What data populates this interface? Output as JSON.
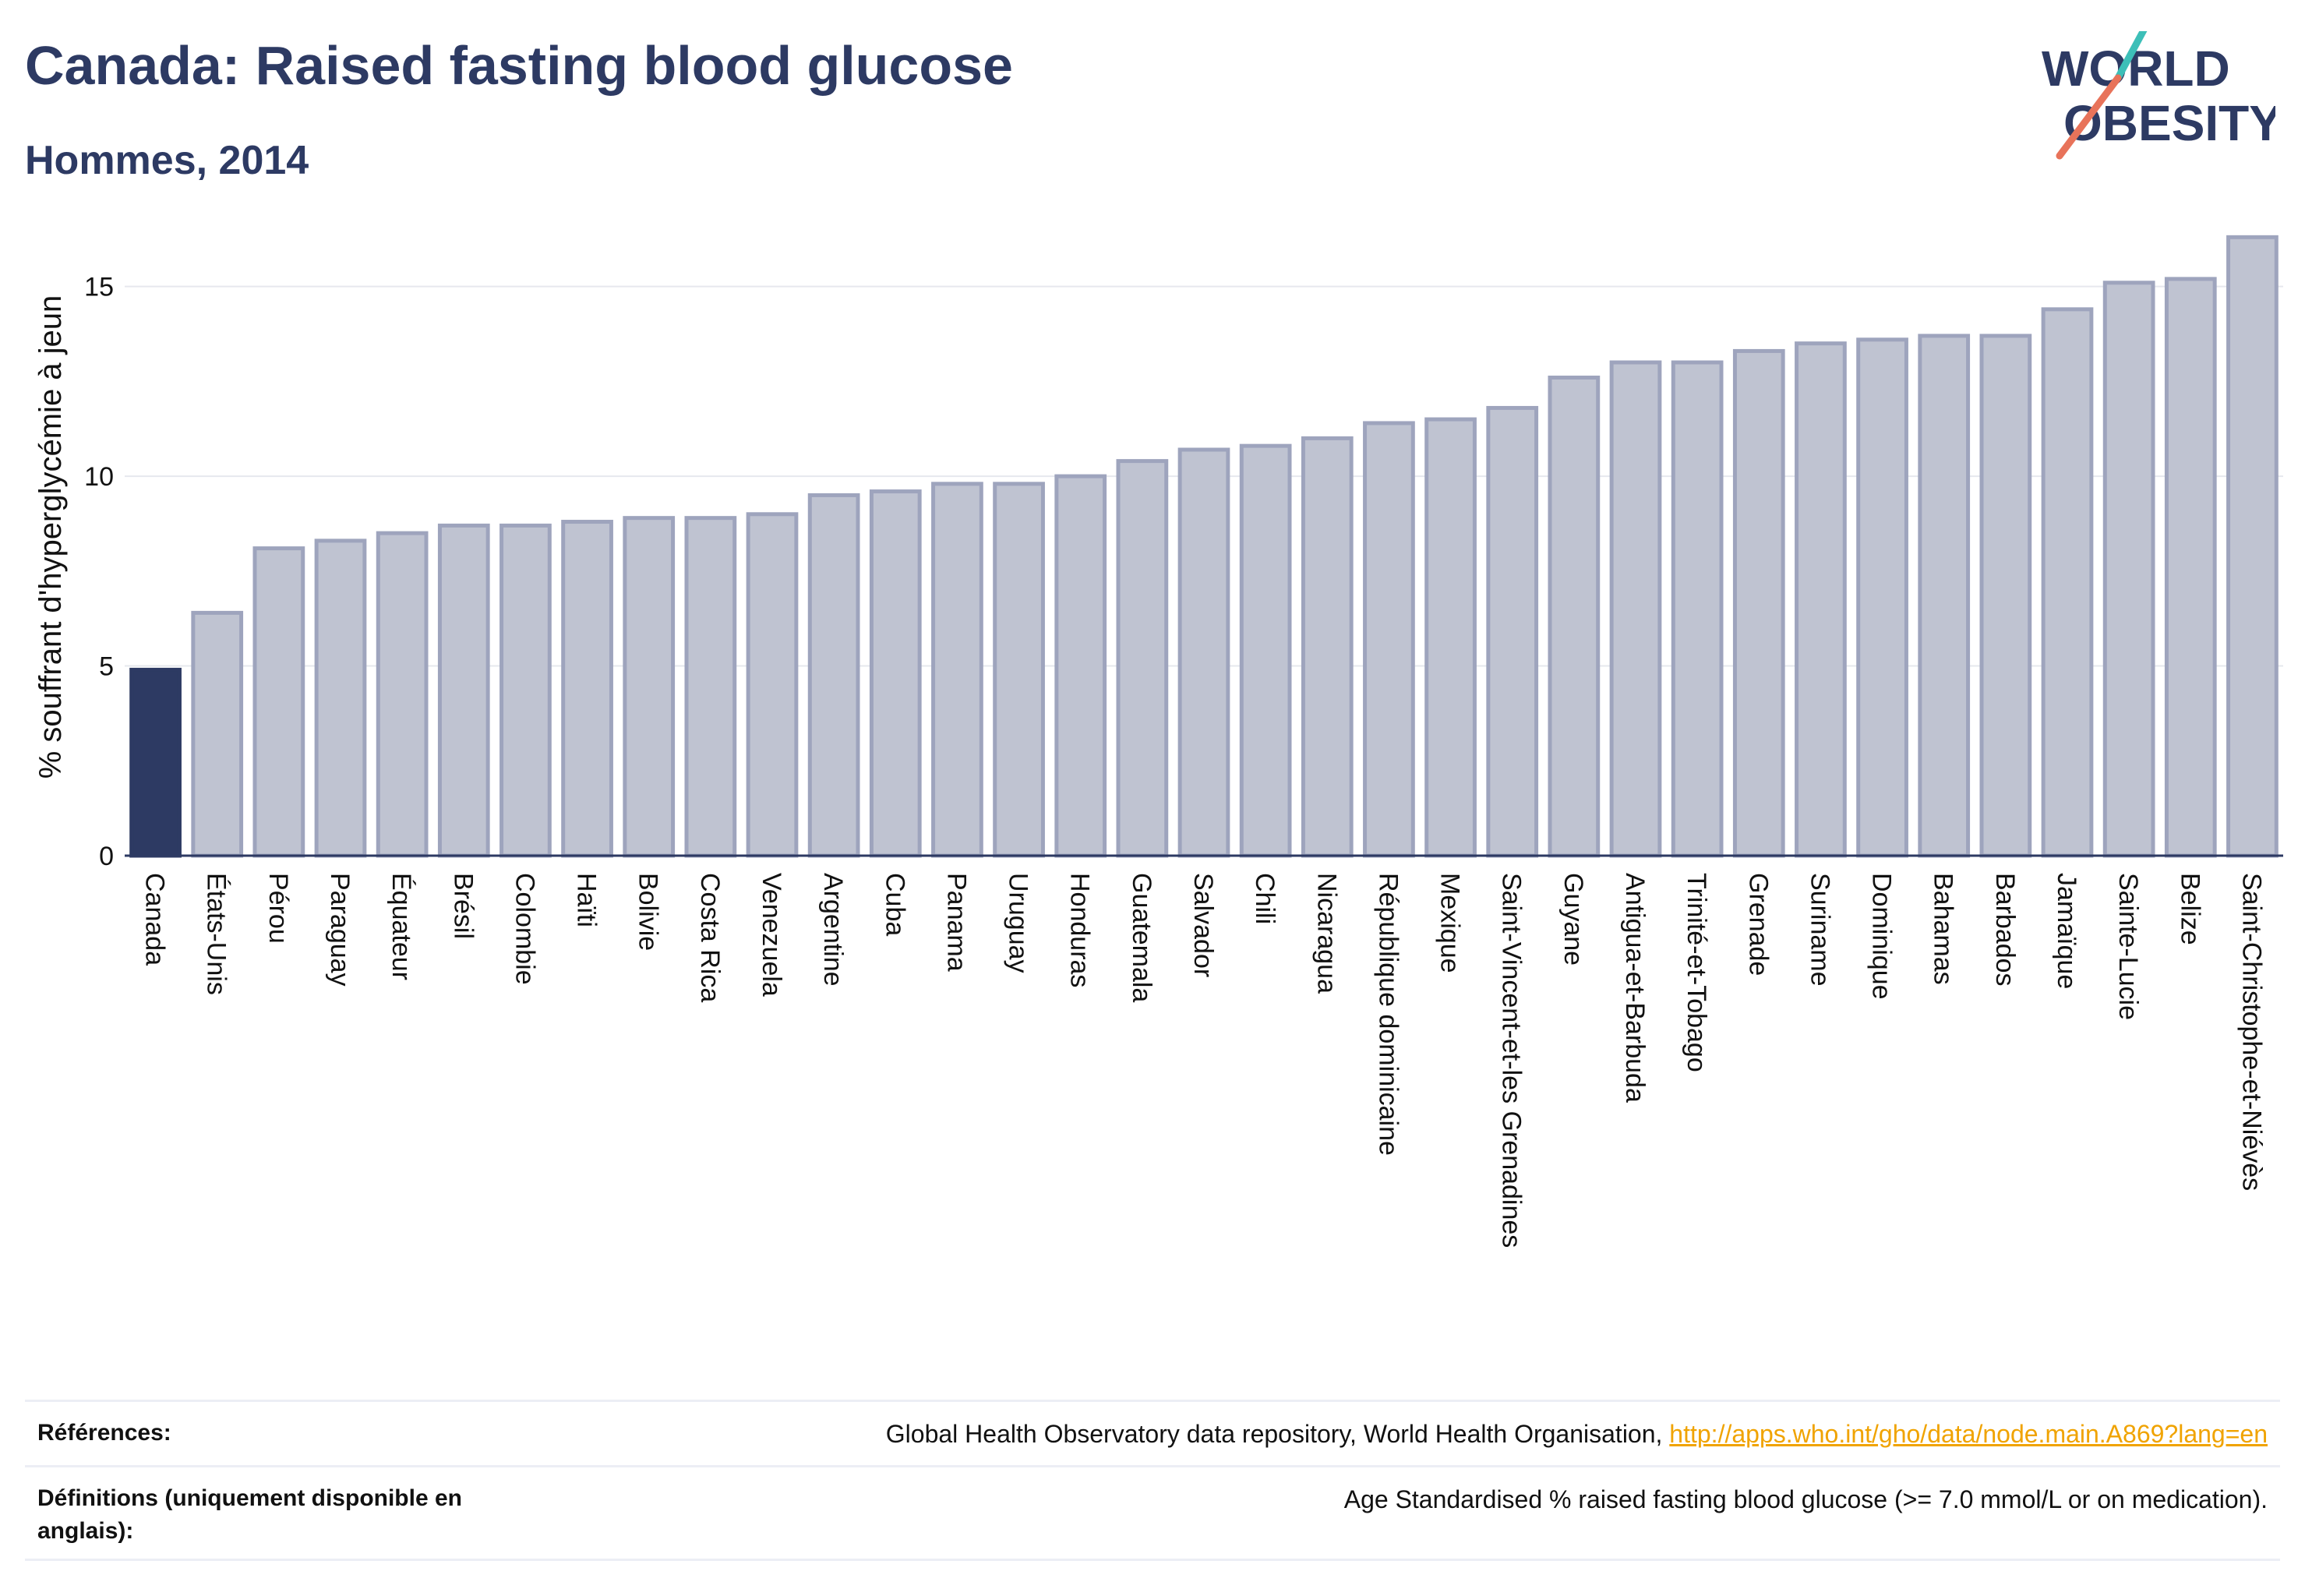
{
  "header": {
    "title": "Canada: Raised fasting blood glucose",
    "subtitle": "Hommes, 2014"
  },
  "logo": {
    "line1": "WORLD",
    "line2": "OBESITY",
    "accent_colors": [
      "#3dbfb8",
      "#e8735a"
    ]
  },
  "chart_data": {
    "type": "bar",
    "title": "",
    "xlabel": "",
    "ylabel": "% souffrant d'hyperglycémie à jeun",
    "ylim": [
      0,
      16.8
    ],
    "yticks": [
      0,
      5,
      10,
      15
    ],
    "grid": true,
    "highlight_category": "Canada",
    "colors": {
      "highlight": "#2d3a63",
      "bar": "#bfc3d1",
      "bar_edge": "#9ea4bd",
      "grid": "#e6e8ee",
      "axis": "#2d3a63"
    },
    "categories": [
      "Canada",
      "États-Unis",
      "Pérou",
      "Paraguay",
      "Équateur",
      "Brésil",
      "Colombie",
      "Haïti",
      "Bolivie",
      "Costa Rica",
      "Venezuela",
      "Argentine",
      "Cuba",
      "Panama",
      "Uruguay",
      "Honduras",
      "Guatemala",
      "Salvador",
      "Chili",
      "Nicaragua",
      "République dominicaine",
      "Mexique",
      "Saint-Vincent-et-les Grenadines",
      "Guyane",
      "Antigua-et-Barbuda",
      "Trinité-et-Tobago",
      "Grenade",
      "Suriname",
      "Dominique",
      "Bahamas",
      "Barbados",
      "Jamaïque",
      "Sainte-Lucie",
      "Belize",
      "Saint-Christophe-et-Niévès"
    ],
    "values": [
      4.9,
      6.4,
      8.1,
      8.3,
      8.5,
      8.7,
      8.7,
      8.8,
      8.9,
      8.9,
      9.0,
      9.5,
      9.6,
      9.8,
      9.8,
      10.0,
      10.4,
      10.7,
      10.8,
      11.0,
      11.4,
      11.5,
      11.8,
      12.6,
      13.0,
      13.0,
      13.3,
      13.5,
      13.6,
      13.7,
      13.7,
      14.4,
      15.1,
      15.2,
      16.3
    ]
  },
  "footer": {
    "references_label": "Références:",
    "references_text": "Global Health Observatory data repository, World Health Organisation, ",
    "references_link": "http://apps.who.int/gho/data/node.main.A869?lang=en",
    "definitions_label": "Définitions (uniquement disponible en anglais):",
    "definitions_text": "Age Standardised % raised fasting blood glucose (>= 7.0 mmol/L or on medication)."
  }
}
